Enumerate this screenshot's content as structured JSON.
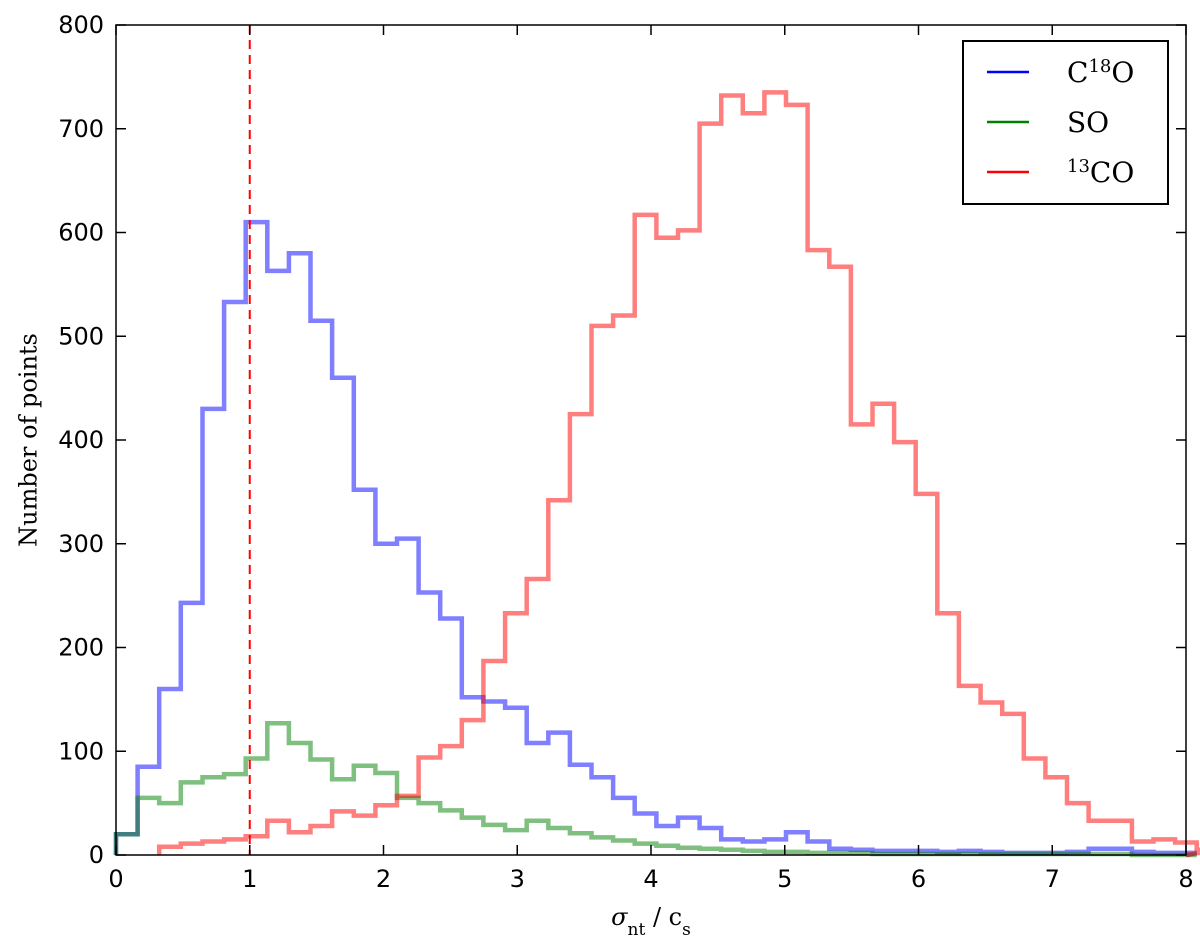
{
  "chart_data": {
    "type": "histogram",
    "xlabel": "σ_nt / c_s",
    "ylabel": "Number of points",
    "xlim": [
      0,
      8
    ],
    "ylim": [
      0,
      800
    ],
    "xticks": [
      "0",
      "1",
      "2",
      "3",
      "4",
      "5",
      "6",
      "7",
      "8"
    ],
    "yticks": [
      "0",
      "100",
      "200",
      "300",
      "400",
      "500",
      "600",
      "700",
      "800"
    ],
    "grid": false,
    "legend_position": "top-right",
    "reference_line": {
      "x": 1,
      "style": "dashed",
      "color": "#ff0000"
    },
    "bin_width": 0.1616,
    "bin_start": 0.0,
    "series": [
      {
        "name": "C18O",
        "color": "#0000ff",
        "values": [
          20,
          85,
          160,
          243,
          430,
          533,
          610,
          563,
          580,
          515,
          460,
          352,
          300,
          305,
          253,
          228,
          152,
          148,
          142,
          108,
          118,
          87,
          75,
          55,
          40,
          28,
          36,
          26,
          15,
          13,
          15,
          22,
          13,
          6,
          5,
          4,
          4,
          4,
          3,
          4,
          3,
          2,
          2,
          2,
          3,
          6,
          6,
          3,
          2,
          2
        ]
      },
      {
        "name": "SO",
        "color": "#008000",
        "values": [
          20,
          55,
          50,
          70,
          75,
          78,
          93,
          127,
          108,
          92,
          73,
          86,
          79,
          55,
          50,
          43,
          36,
          29,
          24,
          33,
          26,
          21,
          17,
          14,
          11,
          9,
          7,
          6,
          5,
          4,
          3,
          3,
          2,
          2,
          2,
          1,
          1,
          1,
          1,
          1,
          1,
          1,
          1,
          1,
          1,
          1,
          1,
          0,
          0,
          0
        ]
      },
      {
        "name": "13CO",
        "color": "#ff0000",
        "first_bin": 2,
        "values": [
          8,
          11,
          13,
          15,
          18,
          33,
          22,
          28,
          42,
          38,
          48,
          57,
          94,
          105,
          130,
          187,
          233,
          266,
          342,
          425,
          510,
          520,
          617,
          595,
          602,
          705,
          732,
          715,
          735,
          723,
          583,
          567,
          415,
          435,
          398,
          348,
          233,
          163,
          147,
          136,
          93,
          75,
          50,
          33,
          33,
          13,
          15,
          12,
          5
        ]
      }
    ],
    "legend": [
      {
        "label_main": "C",
        "label_sup": "18",
        "label_tail": "O"
      },
      {
        "label_main": "SO",
        "label_sup": "",
        "label_tail": ""
      },
      {
        "label_main": "",
        "label_sup": "13",
        "label_tail": "CO"
      }
    ]
  }
}
